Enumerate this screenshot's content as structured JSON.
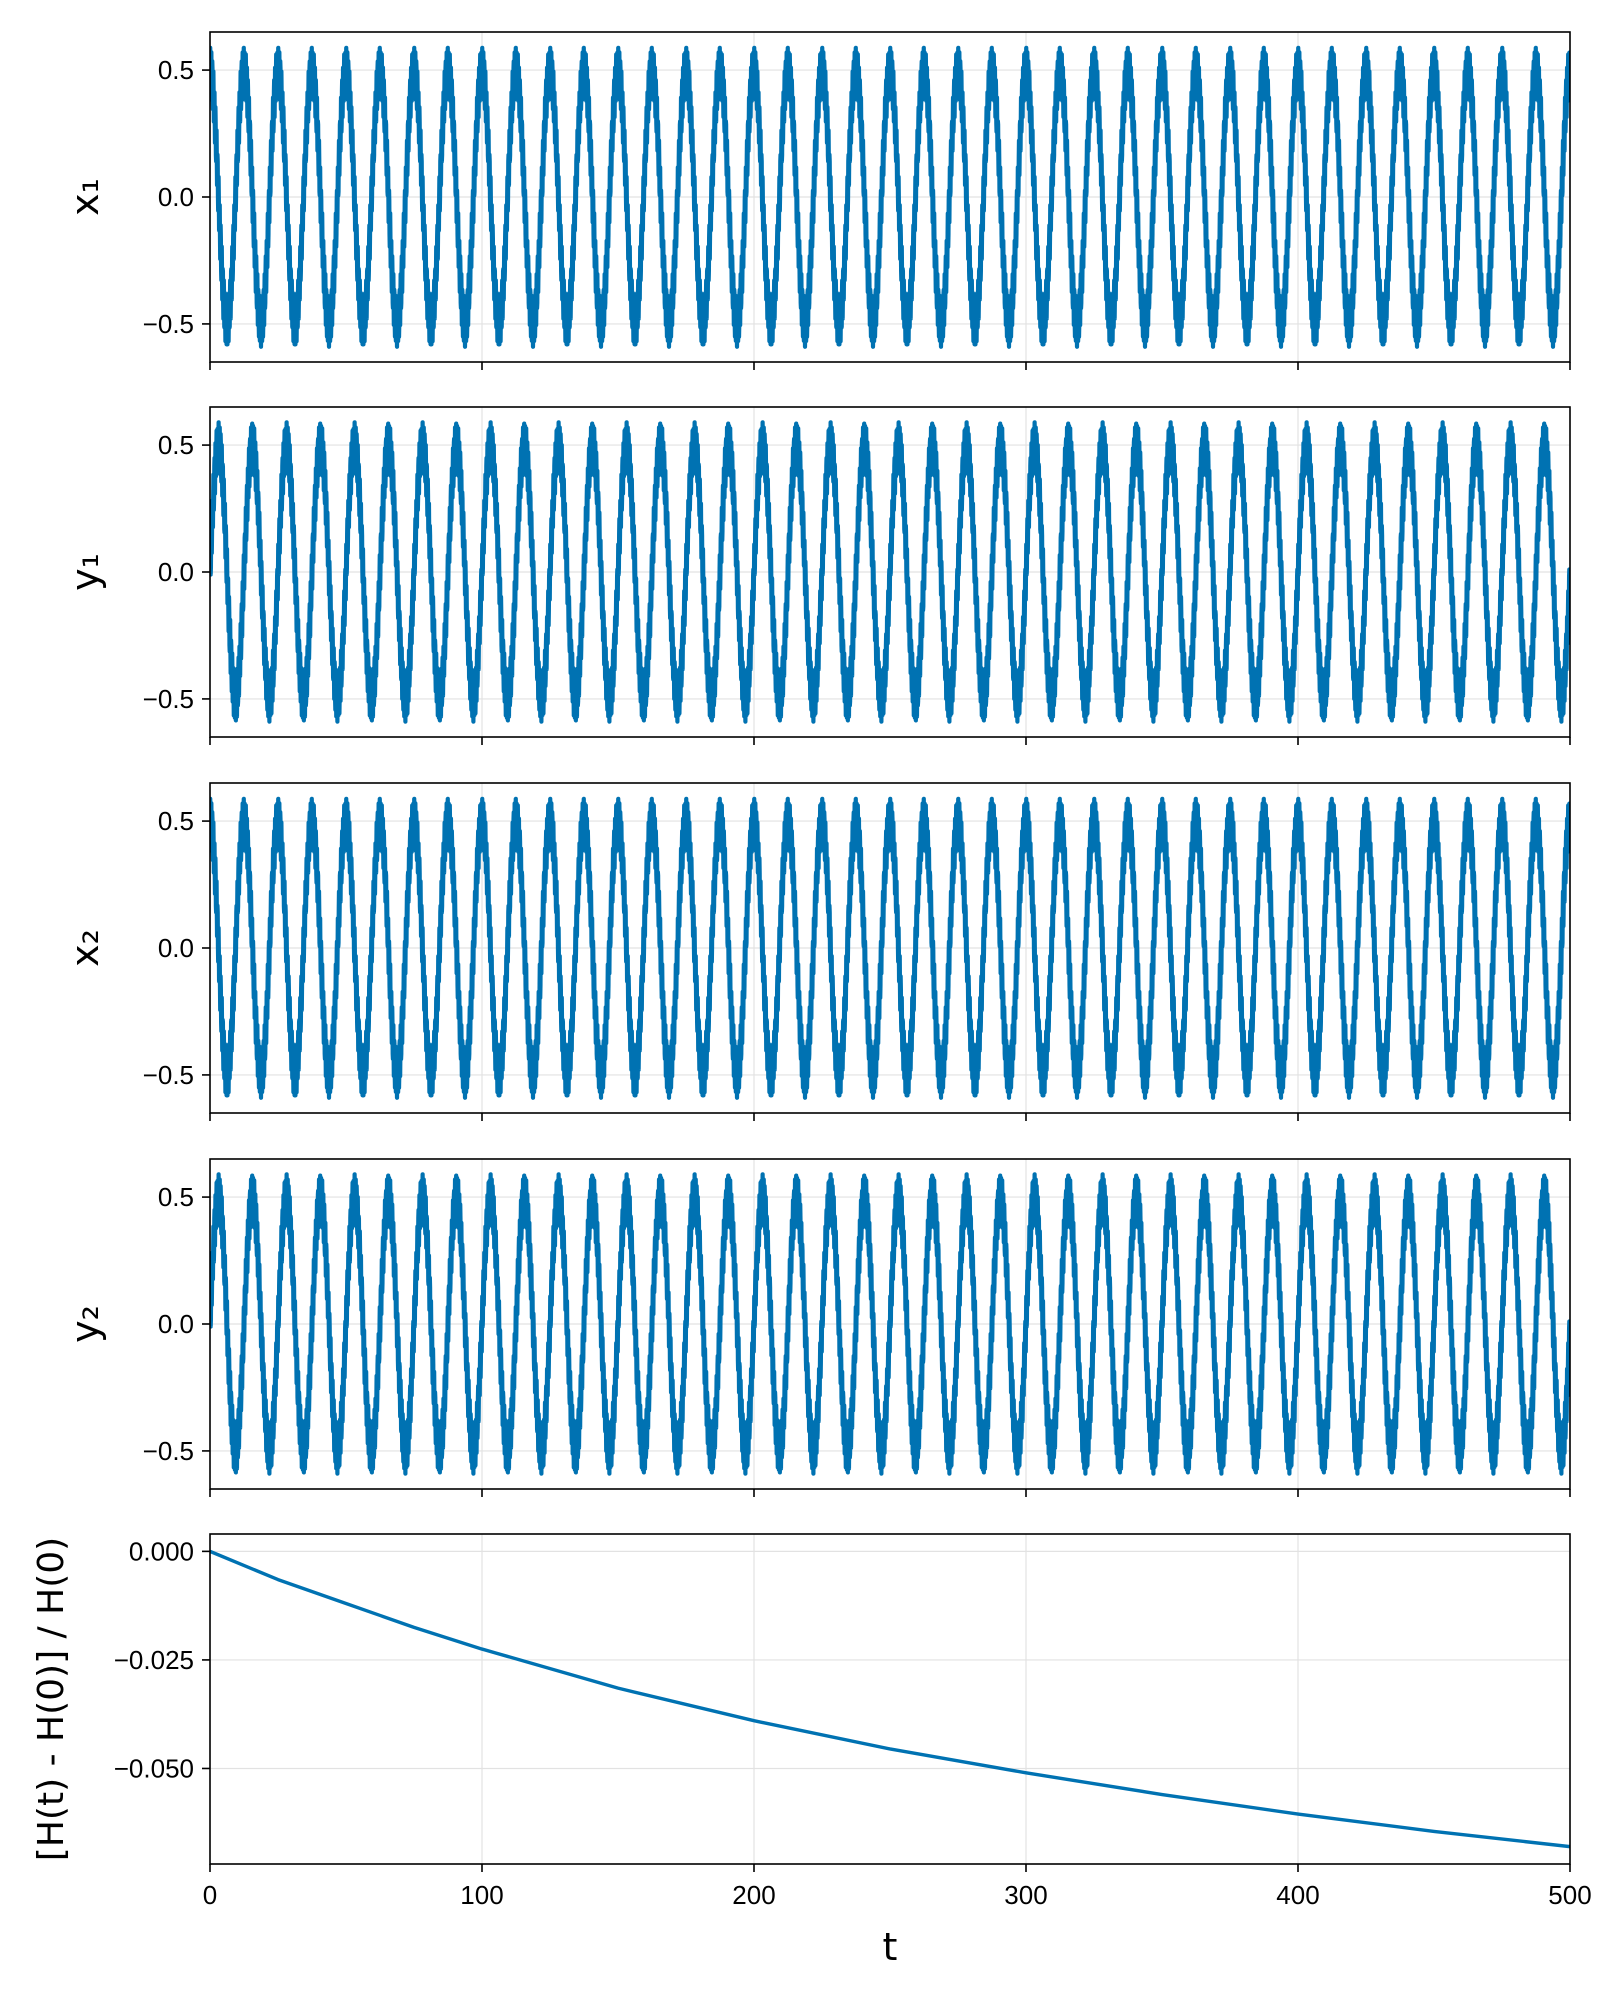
{
  "chart_data": [
    {
      "type": "line",
      "ylabel": "x₁",
      "xlim": [
        0,
        500
      ],
      "ylim": [
        -0.65,
        0.65
      ],
      "yticks": [
        0.5,
        0.0,
        -0.5
      ],
      "ytick_labels": [
        "0.5",
        "0.0",
        "−0.5"
      ],
      "xticks": [
        0,
        100,
        200,
        300,
        400,
        500
      ],
      "grid": true,
      "color": "#0072b2",
      "signal": {
        "amplitude_envelope": 0.59,
        "main_cycles": 40,
        "ripple_amplitude": 0.09,
        "ripple_cycles": 1300,
        "phase_deg": 90
      }
    },
    {
      "type": "line",
      "ylabel": "y₁",
      "xlim": [
        0,
        500
      ],
      "ylim": [
        -0.65,
        0.65
      ],
      "yticks": [
        0.5,
        0.0,
        -0.5
      ],
      "ytick_labels": [
        "0.5",
        "0.0",
        "−0.5"
      ],
      "xticks": [
        0,
        100,
        200,
        300,
        400,
        500
      ],
      "grid": true,
      "color": "#0072b2",
      "signal": {
        "amplitude_envelope": 0.59,
        "main_cycles": 40,
        "ripple_amplitude": 0.09,
        "ripple_cycles": 1300,
        "phase_deg": 0
      }
    },
    {
      "type": "line",
      "ylabel": "x₂",
      "xlim": [
        0,
        500
      ],
      "ylim": [
        -0.65,
        0.65
      ],
      "yticks": [
        0.5,
        0.0,
        -0.5
      ],
      "ytick_labels": [
        "0.5",
        "0.0",
        "−0.5"
      ],
      "xticks": [
        0,
        100,
        200,
        300,
        400,
        500
      ],
      "grid": true,
      "color": "#0072b2",
      "signal": {
        "amplitude_envelope": 0.59,
        "main_cycles": 40,
        "ripple_amplitude": 0.09,
        "ripple_cycles": 1300,
        "phase_deg": 90
      }
    },
    {
      "type": "line",
      "ylabel": "y₂",
      "xlim": [
        0,
        500
      ],
      "ylim": [
        -0.65,
        0.65
      ],
      "yticks": [
        0.5,
        0.0,
        -0.5
      ],
      "ytick_labels": [
        "0.5",
        "0.0",
        "−0.5"
      ],
      "xticks": [
        0,
        100,
        200,
        300,
        400,
        500
      ],
      "grid": true,
      "color": "#0072b2",
      "signal": {
        "amplitude_envelope": 0.59,
        "main_cycles": 40,
        "ripple_amplitude": 0.09,
        "ripple_cycles": 1300,
        "phase_deg": 0
      }
    },
    {
      "type": "line",
      "ylabel": "[H(t) - H(0)] / H(0)",
      "xlabel": "t",
      "xlim": [
        0,
        500
      ],
      "ylim": [
        -0.072,
        0.004
      ],
      "yticks": [
        0.0,
        -0.025,
        -0.05
      ],
      "ytick_labels": [
        "0.000",
        "−0.025",
        "−0.050"
      ],
      "xticks": [
        0,
        100,
        200,
        300,
        400,
        500
      ],
      "xtick_labels": [
        "0",
        "100",
        "200",
        "300",
        "400",
        "500"
      ],
      "grid": true,
      "color": "#0072b2",
      "x": [
        0,
        25,
        50,
        75,
        100,
        150,
        200,
        250,
        300,
        350,
        400,
        450,
        500
      ],
      "y": [
        0.0,
        -0.0065,
        -0.012,
        -0.0175,
        -0.0225,
        -0.0315,
        -0.039,
        -0.0455,
        -0.051,
        -0.056,
        -0.0605,
        -0.0645,
        -0.068
      ]
    }
  ]
}
